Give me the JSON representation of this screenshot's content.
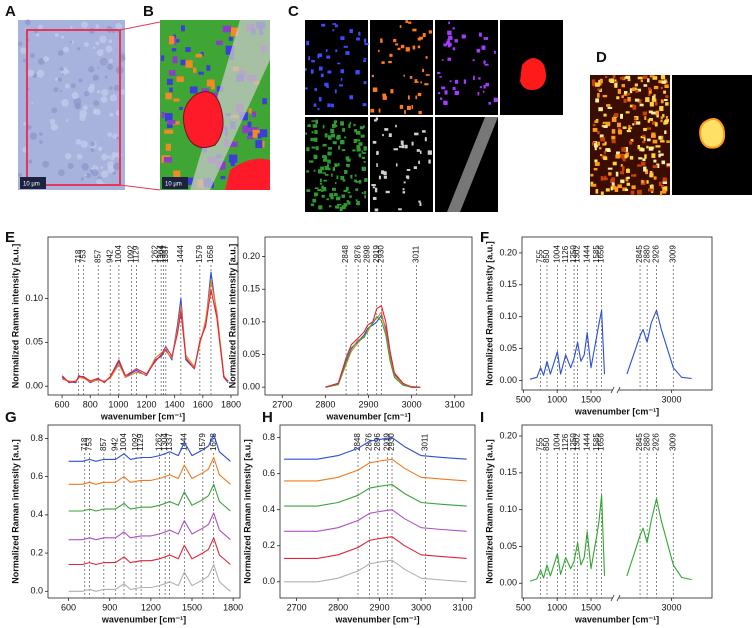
{
  "panel_labels": [
    "A",
    "B",
    "C",
    "D",
    "E",
    "F",
    "G",
    "H",
    "I"
  ],
  "scale_bars": [
    "10 µm",
    "10 µm"
  ],
  "chart_data": [
    {
      "type": "line",
      "x_label": "wavenumber [cm⁻¹]",
      "y_label": "Normalized Raman intensity [a.u.]",
      "xlim": [
        500,
        1850
      ],
      "ylim": [
        -0.01,
        0.17
      ],
      "xticks": [
        600,
        800,
        1000,
        1200,
        1400,
        1600,
        1800
      ],
      "yticks": [
        {
          "value": 0,
          "label": "0.00"
        },
        0.05,
        {
          "value": 0.1,
          "label": "0.10"
        }
      ],
      "peaks": [
        718,
        753,
        857,
        942,
        1004,
        1092,
        1129,
        1262,
        1304,
        1321,
        1337,
        1444,
        1579,
        1658
      ],
      "x": [
        600,
        650,
        700,
        718,
        753,
        800,
        857,
        900,
        942,
        1004,
        1050,
        1092,
        1129,
        1200,
        1262,
        1304,
        1337,
        1380,
        1420,
        1444,
        1480,
        1540,
        1579,
        1620,
        1658,
        1700,
        1750,
        1780
      ],
      "series": [
        {
          "color": "#2a4fd6",
          "values": [
            0.01,
            0.005,
            0.004,
            0.012,
            0.01,
            0.004,
            0.008,
            0.005,
            0.01,
            0.028,
            0.01,
            0.015,
            0.018,
            0.012,
            0.03,
            0.034,
            0.042,
            0.03,
            0.07,
            0.1,
            0.03,
            0.02,
            0.05,
            0.07,
            0.13,
            0.08,
            0.01,
            0.004
          ]
        },
        {
          "color": "#f07a22",
          "values": [
            0.008,
            0.006,
            0.005,
            0.01,
            0.009,
            0.005,
            0.007,
            0.006,
            0.009,
            0.025,
            0.01,
            0.013,
            0.016,
            0.013,
            0.032,
            0.038,
            0.04,
            0.032,
            0.065,
            0.092,
            0.035,
            0.022,
            0.048,
            0.075,
            0.12,
            0.085,
            0.012,
            0.005
          ]
        },
        {
          "color": "#e0243a",
          "values": [
            0.012,
            0.004,
            0.006,
            0.011,
            0.011,
            0.006,
            0.009,
            0.004,
            0.011,
            0.03,
            0.012,
            0.016,
            0.02,
            0.014,
            0.028,
            0.036,
            0.045,
            0.034,
            0.06,
            0.085,
            0.032,
            0.02,
            0.052,
            0.068,
            0.11,
            0.078,
            0.01,
            0.006
          ]
        }
      ]
    },
    {
      "type": "line",
      "x_label": "wavenumber [cm⁻¹]",
      "y_label": "Normalized Raman intensity [a.u.]",
      "xlim": [
        2660,
        3140
      ],
      "ylim": [
        -0.012,
        0.23
      ],
      "xticks": [
        2700,
        2800,
        2900,
        3000,
        3100
      ],
      "yticks": [
        {
          "value": 0,
          "label": "0.00"
        },
        0.05,
        {
          "value": 0.1,
          "label": "0.10"
        },
        0.15,
        {
          "value": 0.2,
          "label": "0.20"
        }
      ],
      "peaks": [
        2848,
        2876,
        2898,
        2919,
        2930,
        3011
      ],
      "x": [
        2800,
        2830,
        2848,
        2860,
        2876,
        2890,
        2898,
        2910,
        2919,
        2930,
        2940,
        2950,
        2960,
        2980,
        3000,
        3020
      ],
      "series": [
        {
          "color": "#2a4fd6",
          "values": [
            0,
            0.005,
            0.04,
            0.06,
            0.07,
            0.08,
            0.09,
            0.095,
            0.1,
            0.11,
            0.09,
            0.05,
            0.02,
            0.005,
            0,
            0
          ]
        },
        {
          "color": "#f07a22",
          "values": [
            0,
            0.004,
            0.035,
            0.055,
            0.068,
            0.078,
            0.085,
            0.1,
            0.105,
            0.115,
            0.085,
            0.045,
            0.018,
            0.004,
            0.001,
            0
          ]
        },
        {
          "color": "#3aa33a",
          "values": [
            0,
            0.004,
            0.038,
            0.058,
            0.072,
            0.076,
            0.088,
            0.098,
            0.108,
            0.102,
            0.08,
            0.04,
            0.015,
            0.003,
            0,
            0
          ]
        },
        {
          "color": "#e0243a",
          "values": [
            0,
            0.006,
            0.045,
            0.065,
            0.075,
            0.085,
            0.095,
            0.1,
            0.12,
            0.125,
            0.1,
            0.055,
            0.022,
            0.006,
            0,
            0
          ]
        }
      ]
    },
    {
      "type": "line",
      "x_label": "wavenumber [cm⁻¹]",
      "y_label": "Normalized Raman intensity [a.u.]",
      "xlim": [
        480,
        3200
      ],
      "axis_break": [
        1800,
        2750
      ],
      "ylim": [
        -0.015,
        0.225
      ],
      "xticks": [
        500,
        1000,
        1500,
        3000
      ],
      "yticks": [
        {
          "value": 0,
          "label": "0.00"
        },
        0.05,
        {
          "value": 0.1,
          "label": "0.10"
        },
        0.15,
        {
          "value": 0.2,
          "label": "0.20"
        }
      ],
      "peaks": [
        755,
        850,
        1004,
        1126,
        1250,
        1302,
        1444,
        1585,
        1656,
        2845,
        2880,
        2926,
        3009
      ],
      "x": [
        600,
        700,
        755,
        800,
        850,
        900,
        1004,
        1050,
        1126,
        1200,
        1250,
        1302,
        1350,
        1400,
        1444,
        1500,
        1585,
        1620,
        1656,
        1700,
        2780,
        2845,
        2860,
        2880,
        2900,
        2926,
        2950,
        3009,
        3050,
        3100
      ],
      "series": [
        {
          "color": "#2a4fd6",
          "values": [
            0.002,
            0.005,
            0.02,
            0.008,
            0.03,
            0.01,
            0.045,
            0.01,
            0.04,
            0.02,
            0.035,
            0.06,
            0.03,
            0.04,
            0.075,
            0.02,
            0.07,
            0.09,
            0.11,
            0.01,
            0.01,
            0.07,
            0.08,
            0.06,
            0.09,
            0.11,
            0.08,
            0.02,
            0.005,
            0.003
          ]
        }
      ]
    },
    {
      "type": "line",
      "x_label": "wavenumber [cm⁻¹]",
      "y_label": "Normalized Raman intensity [a.u.]",
      "xlim": [
        450,
        1850
      ],
      "ylim": [
        -0.035,
        0.87
      ],
      "xticks": [
        600,
        900,
        1200,
        1500,
        1800
      ],
      "yticks": [
        {
          "value": 0,
          "label": "0.0"
        },
        0.2,
        0.4,
        0.6,
        0.8
      ],
      "peaks": [
        718,
        753,
        857,
        942,
        1004,
        1092,
        1129,
        1262,
        1304,
        1337,
        1444,
        1579,
        1658
      ],
      "x": [
        600,
        700,
        753,
        800,
        857,
        942,
        1004,
        1050,
        1129,
        1200,
        1262,
        1304,
        1337,
        1400,
        1444,
        1500,
        1579,
        1620,
        1658,
        1700,
        1780
      ],
      "series": [
        {
          "color": "#2a4fd6",
          "values": [
            0.68,
            0.68,
            0.69,
            0.68,
            0.69,
            0.69,
            0.72,
            0.69,
            0.7,
            0.7,
            0.71,
            0.72,
            0.73,
            0.71,
            0.78,
            0.71,
            0.74,
            0.76,
            0.82,
            0.73,
            0.68
          ]
        },
        {
          "color": "#f07a22",
          "values": [
            0.56,
            0.56,
            0.57,
            0.56,
            0.57,
            0.57,
            0.6,
            0.57,
            0.58,
            0.58,
            0.59,
            0.6,
            0.61,
            0.59,
            0.66,
            0.59,
            0.62,
            0.64,
            0.7,
            0.61,
            0.56
          ]
        },
        {
          "color": "#3aa33a",
          "values": [
            0.42,
            0.42,
            0.43,
            0.42,
            0.43,
            0.43,
            0.46,
            0.43,
            0.44,
            0.44,
            0.45,
            0.46,
            0.47,
            0.45,
            0.52,
            0.45,
            0.48,
            0.5,
            0.56,
            0.47,
            0.42
          ]
        },
        {
          "color": "#b14fc5",
          "values": [
            0.27,
            0.27,
            0.28,
            0.27,
            0.28,
            0.28,
            0.31,
            0.28,
            0.29,
            0.29,
            0.3,
            0.31,
            0.32,
            0.3,
            0.37,
            0.3,
            0.33,
            0.35,
            0.41,
            0.32,
            0.27
          ]
        },
        {
          "color": "#e0243a",
          "values": [
            0.14,
            0.14,
            0.15,
            0.14,
            0.15,
            0.15,
            0.18,
            0.15,
            0.16,
            0.16,
            0.17,
            0.18,
            0.19,
            0.17,
            0.24,
            0.17,
            0.2,
            0.22,
            0.28,
            0.19,
            0.14
          ]
        },
        {
          "color": "#b0b0b0",
          "values": [
            0,
            0,
            0.01,
            0,
            0.01,
            0.01,
            0.04,
            0.01,
            0.02,
            0.02,
            0.03,
            0.04,
            0.05,
            0.03,
            0.1,
            0.03,
            0.06,
            0.08,
            0.14,
            0.05,
            0
          ]
        }
      ]
    },
    {
      "type": "line",
      "x_label": "wavenumber [cm⁻¹]",
      "y_label": "Normalized Raman intensity [a.u.]",
      "xlim": [
        2660,
        3130
      ],
      "ylim": [
        -0.09,
        0.87
      ],
      "xticks": [
        2700,
        2800,
        2900,
        3000,
        3100
      ],
      "yticks": [
        {
          "value": 0,
          "label": "0.0"
        },
        0.2,
        0.4,
        0.6,
        0.8
      ],
      "peaks": [
        2848,
        2876,
        2896,
        2919,
        2930,
        3011
      ],
      "x": [
        2670,
        2700,
        2750,
        2800,
        2848,
        2876,
        2900,
        2930,
        2960,
        3000,
        3050,
        3110
      ],
      "series": [
        {
          "color": "#2a4fd6",
          "values": [
            0.68,
            0.68,
            0.68,
            0.7,
            0.74,
            0.78,
            0.79,
            0.8,
            0.75,
            0.7,
            0.69,
            0.68
          ]
        },
        {
          "color": "#f07a22",
          "values": [
            0.56,
            0.56,
            0.56,
            0.58,
            0.62,
            0.66,
            0.67,
            0.68,
            0.63,
            0.58,
            0.57,
            0.56
          ]
        },
        {
          "color": "#3aa33a",
          "values": [
            0.42,
            0.42,
            0.42,
            0.44,
            0.48,
            0.52,
            0.53,
            0.54,
            0.49,
            0.44,
            0.43,
            0.42
          ]
        },
        {
          "color": "#b14fc5",
          "values": [
            0.28,
            0.28,
            0.28,
            0.3,
            0.34,
            0.38,
            0.39,
            0.4,
            0.35,
            0.3,
            0.29,
            0.28
          ]
        },
        {
          "color": "#e0243a",
          "values": [
            0.13,
            0.13,
            0.13,
            0.15,
            0.19,
            0.23,
            0.24,
            0.25,
            0.2,
            0.15,
            0.14,
            0.13
          ]
        },
        {
          "color": "#b0b0b0",
          "values": [
            0,
            0,
            0,
            0.02,
            0.06,
            0.1,
            0.11,
            0.12,
            0.07,
            0.02,
            0.01,
            0
          ]
        }
      ]
    },
    {
      "type": "line",
      "x_label": "wavenumber [cm⁻¹]",
      "y_label": "Normalized Raman intensity [a.u.]",
      "xlim": [
        480,
        3200
      ],
      "axis_break": [
        1800,
        2750
      ],
      "ylim": [
        -0.02,
        0.215
      ],
      "xticks": [
        500,
        1000,
        1500,
        3000
      ],
      "yticks": [
        {
          "value": 0,
          "label": "0.00"
        },
        0.05,
        {
          "value": 0.1,
          "label": "0.10"
        },
        0.15,
        {
          "value": 0.2,
          "label": "0.20"
        }
      ],
      "peaks": [
        755,
        850,
        1004,
        1126,
        1250,
        1302,
        1444,
        1585,
        1656,
        2845,
        2880,
        2926,
        3009
      ],
      "x": [
        600,
        700,
        755,
        800,
        850,
        900,
        1004,
        1050,
        1126,
        1200,
        1250,
        1302,
        1350,
        1400,
        1444,
        1500,
        1585,
        1620,
        1656,
        1700,
        2780,
        2845,
        2860,
        2880,
        2900,
        2926,
        2950,
        3009,
        3050,
        3100
      ],
      "series": [
        {
          "color": "#2fa82f",
          "values": [
            0.003,
            0.006,
            0.018,
            0.007,
            0.025,
            0.01,
            0.04,
            0.012,
            0.035,
            0.02,
            0.03,
            0.055,
            0.025,
            0.035,
            0.07,
            0.02,
            0.065,
            0.085,
            0.12,
            0.01,
            0.01,
            0.065,
            0.075,
            0.055,
            0.085,
            0.115,
            0.085,
            0.025,
            0.008,
            0.005
          ]
        }
      ]
    }
  ]
}
